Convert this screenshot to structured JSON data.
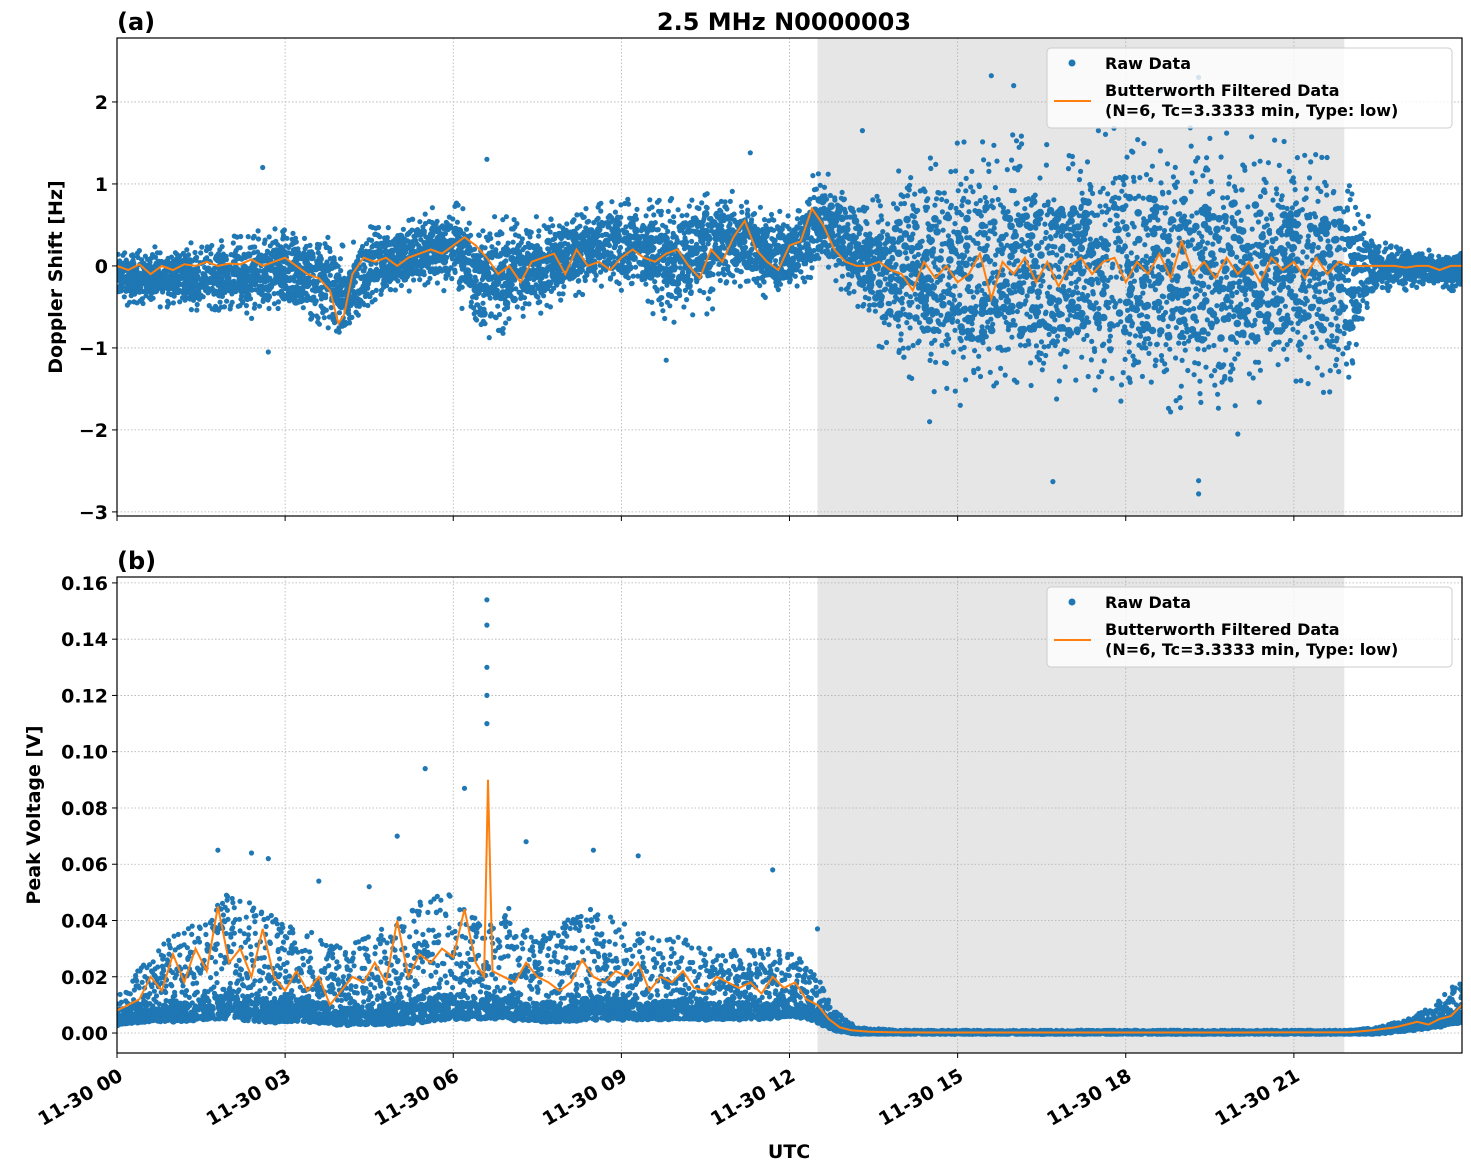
{
  "chart_data": [
    {
      "panel_label": "(a)",
      "title": "2.5 MHz N0000003",
      "type": "scatter+line",
      "ylabel": "Doppler Shift [Hz]",
      "xlabel": "",
      "ylim": [
        -3.05,
        2.78
      ],
      "yticks": [
        2,
        1,
        0,
        -1,
        -2,
        -3
      ],
      "ytick_labels": [
        "2",
        "1",
        "0",
        "−1",
        "−2",
        "−3"
      ],
      "grid": true,
      "legend": {
        "placement": "top-right",
        "entries": [
          {
            "label": "Raw Data",
            "marker": "dot",
            "color": "#1f77b4"
          },
          {
            "label_line1": "Butterworth Filtered Data",
            "label_line2": "(N=6, Tc=3.3333 min, Type: low)",
            "marker": "line",
            "color": "#ff7f0e"
          }
        ]
      },
      "shaded_span_hours": [
        12.5,
        21.9
      ],
      "series": [
        {
          "name": "Raw Data",
          "color": "#1f77b4",
          "envelope_hours": [
            0,
            1,
            2,
            3,
            3.8,
            4.1,
            4.5,
            5,
            6,
            6.5,
            7,
            7.5,
            8,
            9,
            10,
            10.5,
            11,
            11.5,
            12,
            12.5,
            13,
            13.5,
            14,
            15,
            16,
            17,
            18,
            19,
            20,
            21,
            22,
            22.5,
            23,
            24
          ],
          "envelope_low": [
            -0.5,
            -0.5,
            -0.6,
            -0.7,
            -0.9,
            -1.05,
            -0.5,
            -0.4,
            -0.3,
            -1.0,
            -0.8,
            -0.6,
            -0.4,
            -0.3,
            -0.8,
            -0.6,
            -0.3,
            -0.4,
            -0.4,
            -0.2,
            -0.3,
            -0.9,
            -1.3,
            -1.7,
            -1.7,
            -1.6,
            -1.7,
            -1.8,
            -1.7,
            -1.6,
            -1.5,
            -0.3,
            -0.3,
            -0.3
          ],
          "envelope_high": [
            0.2,
            0.25,
            0.35,
            0.5,
            0.4,
            0.2,
            0.5,
            0.6,
            0.8,
            0.6,
            0.6,
            0.6,
            0.7,
            0.8,
            0.9,
            1.1,
            0.9,
            0.8,
            0.6,
            1.2,
            1.0,
            0.8,
            1.2,
            1.5,
            1.6,
            1.6,
            1.7,
            1.7,
            1.6,
            1.5,
            1.2,
            0.3,
            0.25,
            0.2
          ],
          "outliers": [
            [
              2.6,
              1.2
            ],
            [
              6.6,
              1.3
            ],
            [
              11.3,
              1.38
            ],
            [
              13.3,
              1.65
            ],
            [
              15.6,
              2.32
            ],
            [
              16.0,
              2.2
            ],
            [
              18.6,
              2.15
            ],
            [
              19.3,
              2.3
            ],
            [
              19.3,
              -2.78
            ],
            [
              19.3,
              -2.62
            ],
            [
              16.7,
              -2.63
            ],
            [
              14.5,
              -1.9
            ],
            [
              20.0,
              -2.05
            ],
            [
              2.7,
              -1.05
            ],
            [
              9.8,
              -1.15
            ]
          ]
        },
        {
          "name": "Butterworth Filtered Data",
          "color": "#ff7f0e",
          "x_hours": [
            0,
            0.2,
            0.4,
            0.6,
            0.8,
            1.0,
            1.2,
            1.4,
            1.6,
            1.8,
            2.0,
            2.2,
            2.4,
            2.6,
            2.8,
            3.0,
            3.2,
            3.4,
            3.6,
            3.8,
            3.95,
            4.05,
            4.2,
            4.4,
            4.6,
            4.8,
            5.0,
            5.2,
            5.4,
            5.6,
            5.8,
            6.0,
            6.2,
            6.4,
            6.6,
            6.8,
            7.0,
            7.2,
            7.4,
            7.6,
            7.8,
            8.0,
            8.2,
            8.4,
            8.6,
            8.8,
            9.0,
            9.2,
            9.4,
            9.6,
            9.8,
            10.0,
            10.2,
            10.4,
            10.6,
            10.8,
            11.0,
            11.2,
            11.4,
            11.6,
            11.8,
            12.0,
            12.2,
            12.4,
            12.6,
            12.8,
            13.0,
            13.2,
            13.4,
            13.6,
            13.8,
            14.0,
            14.2,
            14.4,
            14.6,
            14.8,
            15.0,
            15.2,
            15.4,
            15.6,
            15.8,
            16.0,
            16.2,
            16.4,
            16.6,
            16.8,
            17.0,
            17.2,
            17.4,
            17.6,
            17.8,
            18.0,
            18.2,
            18.4,
            18.6,
            18.8,
            19.0,
            19.2,
            19.4,
            19.6,
            19.8,
            20.0,
            20.2,
            20.4,
            20.6,
            20.8,
            21.0,
            21.2,
            21.4,
            21.6,
            21.8,
            22.0,
            22.2,
            22.4,
            22.6,
            22.8,
            23.0,
            23.2,
            23.4,
            23.6,
            23.8,
            24.0
          ],
          "y": [
            0.0,
            -0.05,
            0.02,
            -0.1,
            0.0,
            -0.05,
            0.02,
            0.0,
            0.05,
            0.0,
            0.03,
            0.02,
            0.08,
            0.0,
            0.05,
            0.1,
            0.0,
            -0.1,
            -0.15,
            -0.3,
            -0.7,
            -0.6,
            -0.1,
            0.1,
            0.05,
            0.1,
            0.0,
            0.1,
            0.15,
            0.2,
            0.15,
            0.25,
            0.35,
            0.25,
            0.1,
            -0.1,
            0.0,
            -0.2,
            0.05,
            0.1,
            0.15,
            -0.1,
            0.2,
            0.0,
            0.05,
            -0.05,
            0.1,
            0.2,
            0.1,
            0.05,
            0.15,
            0.2,
            0.0,
            -0.15,
            0.2,
            0.05,
            0.35,
            0.55,
            0.2,
            0.05,
            -0.05,
            0.25,
            0.3,
            0.7,
            0.5,
            0.2,
            0.05,
            0.0,
            0.0,
            0.05,
            -0.05,
            -0.1,
            -0.3,
            0.05,
            -0.15,
            0.0,
            -0.2,
            -0.1,
            0.15,
            -0.4,
            0.05,
            -0.1,
            0.1,
            -0.2,
            0.05,
            -0.25,
            0.0,
            0.1,
            -0.1,
            0.05,
            0.1,
            -0.2,
            0.05,
            -0.1,
            0.15,
            -0.15,
            0.3,
            -0.1,
            0.05,
            -0.15,
            0.1,
            -0.1,
            0.05,
            -0.2,
            0.1,
            -0.05,
            0.05,
            -0.15,
            0.1,
            -0.1,
            0.05,
            0.0,
            0.0,
            0.0,
            0.0,
            0.0,
            -0.02,
            0.0,
            0.0,
            -0.05,
            0.0,
            0.0
          ]
        }
      ]
    },
    {
      "panel_label": "(b)",
      "title": "",
      "type": "scatter+line",
      "ylabel": "Peak Voltage [V]",
      "xlabel": "UTC",
      "ylim": [
        -0.0071,
        0.1621
      ],
      "yticks": [
        0.16,
        0.14,
        0.12,
        0.1,
        0.08,
        0.06,
        0.04,
        0.02,
        0.0
      ],
      "ytick_labels": [
        "0.16",
        "0.14",
        "0.12",
        "0.10",
        "0.08",
        "0.06",
        "0.04",
        "0.02",
        "0.00"
      ],
      "xlim_hours": [
        0,
        24
      ],
      "xticks_hours": [
        0,
        3,
        6,
        9,
        12,
        15,
        18,
        21
      ],
      "xtick_labels": [
        "11-30 00",
        "11-30 03",
        "11-30 06",
        "11-30 09",
        "11-30 12",
        "11-30 15",
        "11-30 18",
        "11-30 21"
      ],
      "grid": true,
      "legend": {
        "placement": "top-right",
        "entries": [
          {
            "label": "Raw Data",
            "marker": "dot",
            "color": "#1f77b4"
          },
          {
            "label_line1": "Butterworth Filtered Data",
            "label_line2": "(N=6, Tc=3.3333 min, Type: low)",
            "marker": "line",
            "color": "#ff7f0e"
          }
        ]
      },
      "shaded_span_hours": [
        12.5,
        21.9
      ],
      "series": [
        {
          "name": "Raw Data",
          "color": "#1f77b4",
          "envelope_hours": [
            0,
            0.5,
            1,
            1.5,
            2,
            2.5,
            3,
            3.5,
            4,
            4.5,
            5,
            5.5,
            6,
            6.5,
            7,
            7.5,
            8,
            8.5,
            9,
            9.5,
            10,
            10.5,
            11,
            11.5,
            12,
            12.5,
            12.8,
            13.2,
            14,
            16,
            18,
            20,
            22,
            22.5,
            23,
            23.5,
            24
          ],
          "envelope_low": [
            0.003,
            0.004,
            0.004,
            0.005,
            0.005,
            0.004,
            0.004,
            0.004,
            0.003,
            0.003,
            0.003,
            0.004,
            0.005,
            0.005,
            0.005,
            0.004,
            0.004,
            0.005,
            0.005,
            0.005,
            0.005,
            0.005,
            0.005,
            0.005,
            0.006,
            0.004,
            0.001,
            0.0,
            0.0,
            0.0,
            0.0,
            0.0,
            0.0,
            0.0,
            0.001,
            0.002,
            0.004
          ],
          "envelope_high": [
            0.015,
            0.025,
            0.035,
            0.04,
            0.05,
            0.045,
            0.04,
            0.038,
            0.03,
            0.035,
            0.04,
            0.05,
            0.05,
            0.04,
            0.045,
            0.035,
            0.04,
            0.045,
            0.04,
            0.035,
            0.035,
            0.03,
            0.03,
            0.03,
            0.03,
            0.02,
            0.008,
            0.002,
            0.001,
            0.001,
            0.001,
            0.001,
            0.001,
            0.002,
            0.005,
            0.01,
            0.02
          ],
          "outliers": [
            [
              1.8,
              0.065
            ],
            [
              2.4,
              0.064
            ],
            [
              2.7,
              0.062
            ],
            [
              3.6,
              0.054
            ],
            [
              4.5,
              0.052
            ],
            [
              5.5,
              0.094
            ],
            [
              5.0,
              0.07
            ],
            [
              6.2,
              0.087
            ],
            [
              6.6,
              0.154
            ],
            [
              6.6,
              0.145
            ],
            [
              6.6,
              0.13
            ],
            [
              6.6,
              0.12
            ],
            [
              6.6,
              0.11
            ],
            [
              7.3,
              0.068
            ],
            [
              8.5,
              0.065
            ],
            [
              9.3,
              0.063
            ],
            [
              11.7,
              0.058
            ],
            [
              12.5,
              0.037
            ]
          ]
        },
        {
          "name": "Butterworth Filtered Data",
          "color": "#ff7f0e",
          "x_hours": [
            0,
            0.2,
            0.4,
            0.6,
            0.8,
            1.0,
            1.2,
            1.4,
            1.6,
            1.8,
            2.0,
            2.2,
            2.4,
            2.6,
            2.8,
            3.0,
            3.2,
            3.4,
            3.6,
            3.8,
            4.0,
            4.2,
            4.4,
            4.6,
            4.8,
            5.0,
            5.2,
            5.4,
            5.6,
            5.8,
            6.0,
            6.2,
            6.4,
            6.55,
            6.62,
            6.7,
            6.9,
            7.1,
            7.3,
            7.5,
            7.7,
            7.9,
            8.1,
            8.3,
            8.5,
            8.7,
            8.9,
            9.1,
            9.3,
            9.5,
            9.7,
            9.9,
            10.1,
            10.3,
            10.5,
            10.7,
            10.9,
            11.1,
            11.3,
            11.5,
            11.7,
            11.9,
            12.1,
            12.3,
            12.5,
            12.7,
            12.9,
            13.1,
            13.4,
            13.8,
            14.5,
            16,
            18,
            20,
            22,
            22.4,
            22.8,
            23.0,
            23.2,
            23.4,
            23.6,
            23.8,
            24.0
          ],
          "y": [
            0.008,
            0.01,
            0.012,
            0.02,
            0.015,
            0.028,
            0.018,
            0.03,
            0.022,
            0.045,
            0.025,
            0.03,
            0.02,
            0.037,
            0.02,
            0.015,
            0.022,
            0.015,
            0.02,
            0.01,
            0.015,
            0.02,
            0.018,
            0.025,
            0.018,
            0.04,
            0.02,
            0.028,
            0.025,
            0.03,
            0.027,
            0.044,
            0.025,
            0.02,
            0.09,
            0.022,
            0.02,
            0.018,
            0.025,
            0.02,
            0.018,
            0.015,
            0.018,
            0.026,
            0.02,
            0.018,
            0.022,
            0.02,
            0.025,
            0.015,
            0.02,
            0.018,
            0.022,
            0.016,
            0.015,
            0.02,
            0.018,
            0.016,
            0.018,
            0.014,
            0.02,
            0.016,
            0.018,
            0.012,
            0.01,
            0.005,
            0.002,
            0.001,
            0.0005,
            0.0003,
            0.0002,
            0.0002,
            0.0002,
            0.0002,
            0.0003,
            0.001,
            0.002,
            0.003,
            0.004,
            0.003,
            0.005,
            0.006,
            0.01
          ]
        }
      ]
    }
  ]
}
